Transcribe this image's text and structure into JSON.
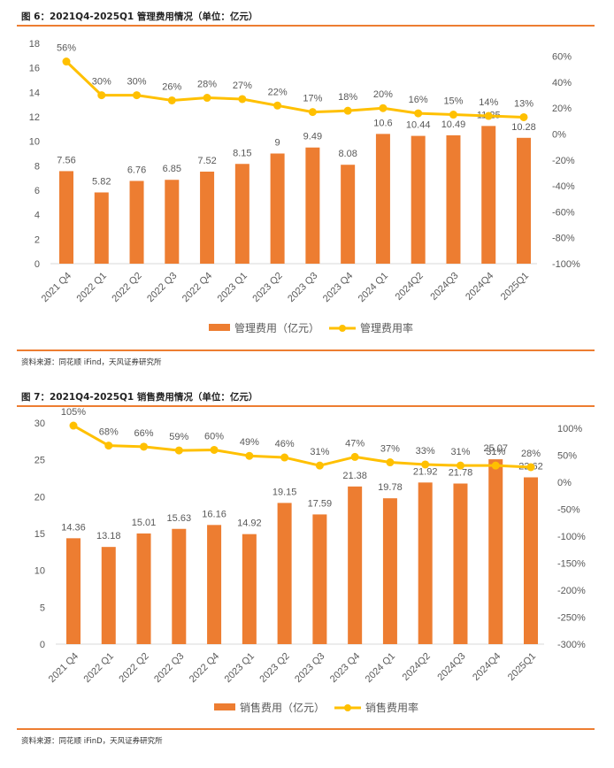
{
  "figures": [
    {
      "title": "图 6：2021Q4-2025Q1 管理费用情况（单位：亿元）",
      "source": "资料来源：同花顺 iFind，天风证券研究所"
    },
    {
      "title": "图 7：2021Q4-2025Q1 销售费用情况（单位：亿元）",
      "source": "资料来源：同花顺 iFinD，天风证券研究所"
    }
  ],
  "colors": {
    "bar": "#ed7d31",
    "line": "#ffc000",
    "rule": "#ed7d31"
  },
  "chart_data": [
    {
      "type": "bar",
      "title": "2021Q4-2025Q1 管理费用情况（单位：亿元）",
      "categories": [
        "2021 Q4",
        "2022 Q1",
        "2022 Q2",
        "2022 Q3",
        "2022 Q4",
        "2023 Q1",
        "2023 Q2",
        "2023 Q3",
        "2023 Q4",
        "2024 Q1",
        "2024Q2",
        "2024Q3",
        "2024Q4",
        "2025Q1"
      ],
      "series": [
        {
          "name": "管理费用（亿元）",
          "type": "bar",
          "axis": "left",
          "values": [
            7.56,
            5.82,
            6.76,
            6.85,
            7.52,
            8.15,
            9,
            9.49,
            8.08,
            10.6,
            10.44,
            10.49,
            11.25,
            10.28
          ],
          "labels": [
            "7.56",
            "5.82",
            "6.76",
            "6.85",
            "7.52",
            "8.15",
            "9",
            "9.49",
            "8.08",
            "10.6",
            "10.44",
            "10.49",
            "11.25",
            "10.28"
          ]
        },
        {
          "name": "管理费用率",
          "type": "line",
          "axis": "right",
          "values": [
            56,
            30,
            30,
            26,
            28,
            27,
            22,
            17,
            18,
            20,
            16,
            15,
            14,
            13
          ],
          "labels": [
            "56%",
            "30%",
            "30%",
            "26%",
            "28%",
            "27%",
            "22%",
            "17%",
            "18%",
            "20%",
            "16%",
            "15%",
            "14%",
            "13%"
          ]
        }
      ],
      "ylim": [
        0,
        18
      ],
      "yticks": [
        "0",
        "2",
        "4",
        "6",
        "8",
        "10",
        "12",
        "14",
        "16",
        "18"
      ],
      "y2lim": [
        -100,
        70
      ],
      "y2ticks": [
        "-100%",
        "-80%",
        "-60%",
        "-40%",
        "-20%",
        "0%",
        "20%",
        "40%",
        "60%"
      ],
      "legend": [
        "管理费用（亿元）",
        "管理费用率"
      ],
      "legend_position": "bottom",
      "grid": false
    },
    {
      "type": "bar",
      "title": "2021Q4-2025Q1 销售费用情况（单位：亿元）",
      "categories": [
        "2021 Q4",
        "2022 Q1",
        "2022 Q2",
        "2022 Q3",
        "2022 Q4",
        "2023 Q1",
        "2023 Q2",
        "2023 Q3",
        "2023 Q4",
        "2024 Q1",
        "2024Q2",
        "2024Q3",
        "2024Q4",
        "2025Q1"
      ],
      "series": [
        {
          "name": "销售费用（亿元）",
          "type": "bar",
          "axis": "left",
          "values": [
            14.36,
            13.18,
            15.01,
            15.63,
            16.16,
            14.92,
            19.15,
            17.59,
            21.38,
            19.78,
            21.92,
            21.78,
            25.07,
            22.62
          ],
          "labels": [
            "14.36",
            "13.18",
            "15.01",
            "15.63",
            "16.16",
            "14.92",
            "19.15",
            "17.59",
            "21.38",
            "19.78",
            "21.92",
            "21.78",
            "25.07",
            "22.62"
          ]
        },
        {
          "name": "销售费用率",
          "type": "line",
          "axis": "right",
          "values": [
            105,
            68,
            66,
            59,
            60,
            49,
            46,
            31,
            47,
            37,
            33,
            31,
            31,
            28
          ],
          "labels": [
            "105%",
            "68%",
            "66%",
            "59%",
            "60%",
            "49%",
            "46%",
            "31%",
            "47%",
            "37%",
            "33%",
            "31%",
            "31%",
            "28%"
          ]
        }
      ],
      "ylim": [
        0,
        30
      ],
      "yticks": [
        "0",
        "5",
        "10",
        "15",
        "20",
        "25",
        "30"
      ],
      "y2lim": [
        -300,
        110
      ],
      "y2ticks": [
        "-300%",
        "-250%",
        "-200%",
        "-150%",
        "-100%",
        "-50%",
        "0%",
        "50%",
        "100%"
      ],
      "legend": [
        "销售费用（亿元）",
        "销售费用率"
      ],
      "legend_position": "bottom",
      "grid": false
    }
  ]
}
